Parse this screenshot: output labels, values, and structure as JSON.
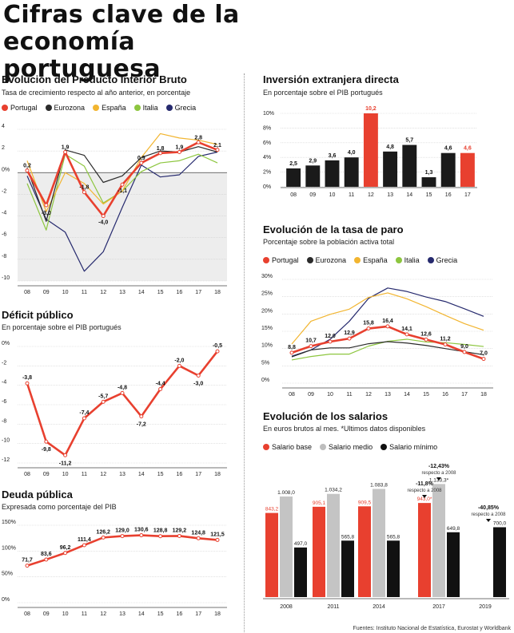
{
  "title": "Cifras clave de la economía portuguesa",
  "colors": {
    "Portugal": "#e8402f",
    "Eurozona": "#2b2b2b",
    "España": "#f2b530",
    "Italia": "#8dc63f",
    "Grecia": "#262a6e"
  },
  "pib": {
    "title": "Evolución del Producto Interior Bruto",
    "subtitle": "Tasa de crecimiento respecto al año anterior, en porcentaje",
    "legend": [
      "Portugal",
      "Eurozona",
      "España",
      "Italia",
      "Grecia"
    ]
  },
  "deficit": {
    "title": "Déficit público",
    "subtitle": "En porcentaje sobre el PIB portugués"
  },
  "deuda": {
    "title": "Deuda pública",
    "subtitle": "Expresada como porcentaje del PIB"
  },
  "inversion": {
    "title": "Inversión extranjera directa",
    "subtitle": "En porcentaje sobre el PIB portugués"
  },
  "paro": {
    "title": "Evolución de la tasa de paro",
    "subtitle": "Porcentaje sobre la población activa total",
    "legend": [
      "Portugal",
      "Eurozona",
      "España",
      "Italia",
      "Grecia"
    ]
  },
  "salarios": {
    "title": "Evolución de los salarios",
    "subtitle": "En euros brutos al mes. *Ultimos datos disponibles",
    "legend": [
      "Salario base",
      "Salario medio",
      "Salario mínimo"
    ],
    "annotations": [
      {
        "pct": "-11,8%",
        "text": "respecto a 2008"
      },
      {
        "pct": "-12,43%",
        "text": "respecto a 2008"
      },
      {
        "pct": "-40,85%",
        "text": "respecto a 2008"
      }
    ]
  },
  "footer": "Fuentes: Instituto Nacional de Estatística, Eurostat y Worldbank",
  "chart_data": [
    {
      "type": "line",
      "title": "Evolución del Producto Interior Bruto",
      "x": [
        "08",
        "09",
        "10",
        "11",
        "12",
        "13",
        "14",
        "15",
        "16",
        "17",
        "18"
      ],
      "ylim": [
        -10,
        4
      ],
      "yticks": [
        "4",
        "2",
        "0%",
        "-2",
        "-4",
        "-6",
        "-8",
        "-10"
      ],
      "series": [
        {
          "name": "Portugal",
          "values": [
            0.2,
            -3.0,
            1.9,
            -1.8,
            -4.0,
            -1.1,
            0.9,
            1.8,
            1.9,
            2.8,
            2.1
          ],
          "labels": [
            "0,2",
            "-3,0",
            "1,9",
            "-1,8",
            "-4,0",
            "-1,1",
            "0,9",
            "1,8",
            "1,9",
            "2,8",
            "2,1"
          ]
        },
        {
          "name": "Eurozona",
          "values": [
            0.4,
            -4.5,
            2.1,
            1.6,
            -0.9,
            -0.3,
            1.4,
            2.0,
            1.9,
            2.4,
            1.9
          ]
        },
        {
          "name": "España",
          "values": [
            1.1,
            -3.6,
            0.0,
            -1.0,
            -2.9,
            -1.7,
            1.4,
            3.6,
            3.2,
            3.0,
            2.6
          ]
        },
        {
          "name": "Italia",
          "values": [
            -1.0,
            -5.3,
            1.7,
            0.6,
            -2.8,
            -1.7,
            0.1,
            0.9,
            1.1,
            1.7,
            0.9
          ]
        },
        {
          "name": "Grecia",
          "values": [
            -0.3,
            -4.3,
            -5.5,
            -9.1,
            -7.3,
            -3.2,
            0.7,
            -0.4,
            -0.2,
            1.5,
            1.9
          ]
        }
      ]
    },
    {
      "type": "line",
      "title": "Déficit público",
      "x": [
        "08",
        "09",
        "10",
        "11",
        "12",
        "13",
        "14",
        "15",
        "16",
        "17",
        "18"
      ],
      "ylim": [
        -12,
        0
      ],
      "yticks": [
        "0%",
        "-2",
        "-4",
        "-6",
        "-8",
        "-10",
        "-12"
      ],
      "series": [
        {
          "name": "Portugal",
          "values": [
            -3.8,
            -9.8,
            -11.2,
            -7.4,
            -5.7,
            -4.8,
            -7.2,
            -4.4,
            -2.0,
            -3.0,
            -0.5
          ],
          "labels": [
            "-3,8",
            "-9,8",
            "-11,2",
            "-7,4",
            "-5,7",
            "-4,8",
            "-7,2",
            "-4,4",
            "-2,0",
            "-3,0",
            "-0,5"
          ]
        }
      ]
    },
    {
      "type": "line",
      "title": "Deuda pública",
      "x": [
        "08",
        "09",
        "10",
        "11",
        "12",
        "13",
        "14",
        "15",
        "16",
        "17",
        "18"
      ],
      "ylim": [
        0,
        150
      ],
      "yticks": [
        "150%",
        "100%",
        "50%",
        "0%"
      ],
      "series": [
        {
          "name": "Portugal",
          "values": [
            71.7,
            83.6,
            96.2,
            111.4,
            126.2,
            129.0,
            130.6,
            128.8,
            129.2,
            124.8,
            121.5
          ],
          "labels": [
            "71,7",
            "83,6",
            "96,2",
            "111,4",
            "126,2",
            "129,0",
            "130,6",
            "128,8",
            "129,2",
            "124,8",
            "121,5"
          ]
        }
      ]
    },
    {
      "type": "bar",
      "title": "Inversión extranjera directa",
      "categories": [
        "08",
        "09",
        "10",
        "11",
        "12",
        "13",
        "14",
        "15",
        "16",
        "17"
      ],
      "values": [
        2.5,
        2.9,
        3.6,
        4.0,
        10.2,
        4.8,
        5.7,
        1.3,
        4.6,
        4.6
      ],
      "labels": [
        "2,5",
        "2,9",
        "3,6",
        "4,0",
        "10,2",
        "4,8",
        "5,7",
        "1,3",
        "4,6",
        "4,6"
      ],
      "highlight": [
        "12",
        "17"
      ],
      "ylim": [
        0,
        10
      ],
      "yticks": [
        "10%",
        "8%",
        "6%",
        "4%",
        "2%",
        "0%"
      ]
    },
    {
      "type": "line",
      "title": "Evolución de la tasa de paro",
      "x": [
        "08",
        "09",
        "10",
        "11",
        "12",
        "13",
        "14",
        "15",
        "16",
        "17",
        "18"
      ],
      "ylim": [
        0,
        30
      ],
      "yticks": [
        "30%",
        "25%",
        "20%",
        "15%",
        "10%",
        "5%",
        "0%"
      ],
      "series": [
        {
          "name": "Portugal",
          "values": [
            8.8,
            10.7,
            12.0,
            12.9,
            15.8,
            16.4,
            14.1,
            12.6,
            11.2,
            9.0,
            7.0
          ],
          "labels": [
            "8,8",
            "10,7",
            "12,0",
            "12,9",
            "15,8",
            "16,4",
            "14,1",
            "12,6",
            "11,2",
            "9,0",
            "7,0"
          ]
        },
        {
          "name": "Eurozona",
          "values": [
            7.6,
            9.6,
            10.2,
            10.2,
            11.4,
            12.0,
            11.6,
            10.9,
            10.0,
            9.1,
            8.2
          ]
        },
        {
          "name": "España",
          "values": [
            11.3,
            17.9,
            19.9,
            21.4,
            24.8,
            26.1,
            24.4,
            22.1,
            19.6,
            17.2,
            15.3
          ]
        },
        {
          "name": "Italia",
          "values": [
            6.7,
            7.7,
            8.4,
            8.4,
            10.7,
            12.1,
            12.7,
            11.9,
            11.7,
            11.2,
            10.6
          ]
        },
        {
          "name": "Grecia",
          "values": [
            7.8,
            9.6,
            12.7,
            17.9,
            24.5,
            27.5,
            26.5,
            24.9,
            23.6,
            21.5,
            19.3
          ]
        }
      ]
    },
    {
      "type": "bar",
      "title": "Evolución de los salarios",
      "categories": [
        "2008",
        "2011",
        "2014",
        "2017",
        "2019"
      ],
      "ylim": [
        0,
        1200
      ],
      "series": [
        {
          "name": "Salario base",
          "values": [
            843.2,
            905.1,
            909.5,
            943.0,
            null
          ],
          "labels": [
            "843,2",
            "905,1",
            "909,5",
            "943,0*",
            ""
          ]
        },
        {
          "name": "Salario medio",
          "values": [
            1008.0,
            1034.2,
            1083.8,
            1133.3,
            null
          ],
          "labels": [
            "1.008,0",
            "1.034,2",
            "1.083,8",
            "1.133,3*",
            ""
          ]
        },
        {
          "name": "Salario mínimo",
          "values": [
            497.0,
            565.8,
            565.8,
            649.8,
            700.0
          ],
          "labels": [
            "497,0",
            "565,8",
            "565,8",
            "649,8",
            "700,0"
          ]
        }
      ]
    }
  ]
}
